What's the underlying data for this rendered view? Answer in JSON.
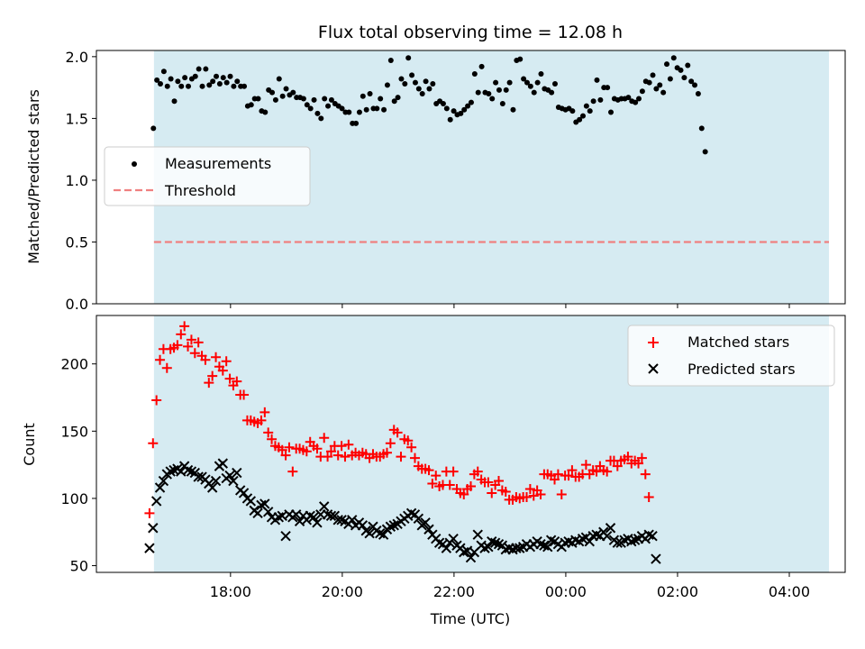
{
  "chart_data": [
    {
      "type": "scatter",
      "title": "Flux total observing time = 12.08 h",
      "ylabel": "Matched/Predicted stars",
      "ylim": [
        0,
        2.05
      ],
      "yticks": [
        "0.0",
        "0.5",
        "1.0",
        "1.5",
        "2.0"
      ],
      "x_range_hours": [
        15.6,
        29.0
      ],
      "shaded_span_hours": [
        16.63,
        28.71
      ],
      "shade_color": "#add8e6",
      "legend_position": "center-left",
      "series": [
        {
          "name": "Measurements",
          "marker": "dot",
          "color": "#000000",
          "x_start": 16.62,
          "x_step": 0.0625,
          "values": [
            1.42,
            1.81,
            1.78,
            1.88,
            1.76,
            1.82,
            1.64,
            1.8,
            1.76,
            1.83,
            1.76,
            1.82,
            1.84,
            1.9,
            1.76,
            1.9,
            1.77,
            1.8,
            1.84,
            1.78,
            1.83,
            1.79,
            1.84,
            1.76,
            1.8,
            1.76,
            1.76,
            1.6,
            1.61,
            1.66,
            1.66,
            1.56,
            1.55,
            1.73,
            1.71,
            1.65,
            1.82,
            1.68,
            1.74,
            1.69,
            1.71,
            1.67,
            1.67,
            1.66,
            1.61,
            1.58,
            1.65,
            1.54,
            1.5,
            1.66,
            1.6,
            1.65,
            1.62,
            1.6,
            1.58,
            1.55,
            1.55,
            1.46,
            1.46,
            1.55,
            1.68,
            1.57,
            1.7,
            1.58,
            1.58,
            1.66,
            1.57,
            1.77,
            1.97,
            1.64,
            1.67,
            1.82,
            1.78,
            1.99,
            1.85,
            1.79,
            1.74,
            1.7,
            1.8,
            1.74,
            1.78,
            1.62,
            1.64,
            1.62,
            1.58,
            1.49,
            1.56,
            1.53,
            1.54,
            1.57,
            1.6,
            1.63,
            1.86,
            1.71,
            1.92,
            1.71,
            1.7,
            1.66,
            1.79,
            1.73,
            1.62,
            1.73,
            1.79,
            1.57,
            1.97,
            1.98,
            1.82,
            1.79,
            1.76,
            1.71,
            1.79,
            1.86,
            1.74,
            1.73,
            1.71,
            1.78,
            1.59,
            1.58,
            1.57,
            1.58,
            1.56,
            1.47,
            1.49,
            1.52,
            1.6,
            1.56,
            1.64,
            1.81,
            1.65,
            1.75,
            1.75,
            1.55,
            1.66,
            1.65,
            1.66,
            1.66,
            1.67,
            1.64,
            1.63,
            1.66,
            1.72,
            1.8,
            1.79,
            1.85,
            1.74,
            1.77,
            1.71,
            1.94,
            1.82,
            1.99,
            1.91,
            1.89,
            1.83,
            1.93,
            1.8,
            1.77,
            1.7,
            1.42,
            1.23
          ]
        },
        {
          "name": "Threshold",
          "marker": "dashed-line",
          "color": "#f08080",
          "value": 0.5
        }
      ]
    },
    {
      "type": "scatter",
      "xlabel": "Time (UTC)",
      "ylabel": "Count",
      "ylim": [
        45,
        236
      ],
      "yticks": [
        "50",
        "100",
        "150",
        "200"
      ],
      "xticks": [
        {
          "label": "18:00",
          "hour": 18
        },
        {
          "label": "20:00",
          "hour": 20
        },
        {
          "label": "22:00",
          "hour": 22
        },
        {
          "label": "00:00",
          "hour": 24
        },
        {
          "label": "02:00",
          "hour": 26
        },
        {
          "label": "04:00",
          "hour": 28
        }
      ],
      "x_range_hours": [
        15.6,
        29.0
      ],
      "shaded_span_hours": [
        16.63,
        28.71
      ],
      "shade_color": "#add8e6",
      "legend_position": "top-right",
      "series": [
        {
          "name": "Matched stars",
          "marker": "plus",
          "color": "#ff0000",
          "x_start": 16.55,
          "x_step": 0.0625,
          "values": [
            89,
            141,
            173,
            203,
            211,
            197,
            211,
            212,
            214,
            222,
            228,
            213,
            218,
            208,
            216,
            206,
            203,
            186,
            191,
            205,
            198,
            195,
            202,
            189,
            184,
            187,
            177,
            177,
            158,
            158,
            157,
            156,
            158,
            164,
            149,
            144,
            139,
            138,
            136,
            132,
            138,
            120,
            137,
            137,
            136,
            135,
            142,
            139,
            137,
            131,
            145,
            131,
            135,
            139,
            132,
            139,
            131,
            140,
            132,
            134,
            132,
            134,
            133,
            130,
            133,
            131,
            131,
            133,
            134,
            141,
            151,
            149,
            131,
            144,
            143,
            138,
            130,
            124,
            122,
            122,
            121,
            111,
            117,
            109,
            110,
            120,
            110,
            120,
            107,
            104,
            103,
            107,
            109,
            118,
            120,
            114,
            112,
            112,
            104,
            110,
            113,
            106,
            105,
            99,
            99,
            101,
            100,
            101,
            101,
            107,
            102,
            106,
            103,
            118,
            118,
            117,
            114,
            118,
            103,
            117,
            117,
            121,
            116,
            116,
            118,
            125,
            118,
            121,
            120,
            124,
            121,
            120,
            128,
            128,
            124,
            128,
            129,
            131,
            126,
            128,
            126,
            130,
            118,
            101
          ]
        },
        {
          "name": "Predicted stars",
          "marker": "x",
          "color": "#000000",
          "x_start": 16.55,
          "x_step": 0.0625,
          "values": [
            63,
            78,
            98,
            108,
            113,
            118,
            120,
            121,
            122,
            120,
            124,
            121,
            120,
            119,
            116,
            116,
            114,
            111,
            108,
            113,
            124,
            126,
            115,
            117,
            113,
            119,
            106,
            104,
            100,
            98,
            91,
            89,
            95,
            96,
            90,
            86,
            84,
            86,
            87,
            72,
            88,
            86,
            88,
            83,
            87,
            84,
            87,
            86,
            82,
            88,
            94,
            88,
            87,
            87,
            84,
            84,
            83,
            81,
            84,
            80,
            82,
            80,
            76,
            74,
            79,
            76,
            74,
            73,
            77,
            79,
            80,
            81,
            83,
            85,
            87,
            89,
            88,
            85,
            80,
            82,
            77,
            73,
            70,
            67,
            66,
            63,
            67,
            70,
            65,
            63,
            60,
            61,
            56,
            60,
            73,
            65,
            63,
            64,
            68,
            67,
            66,
            65,
            62,
            63,
            62,
            63,
            63,
            64,
            66,
            64,
            66,
            68,
            66,
            65,
            64,
            69,
            68,
            66,
            64,
            67,
            68,
            67,
            69,
            68,
            70,
            71,
            68,
            72,
            73,
            72,
            75,
            72,
            78,
            69,
            67,
            67,
            69,
            70,
            68,
            69,
            70,
            72,
            70,
            73,
            72,
            55
          ]
        }
      ]
    }
  ]
}
